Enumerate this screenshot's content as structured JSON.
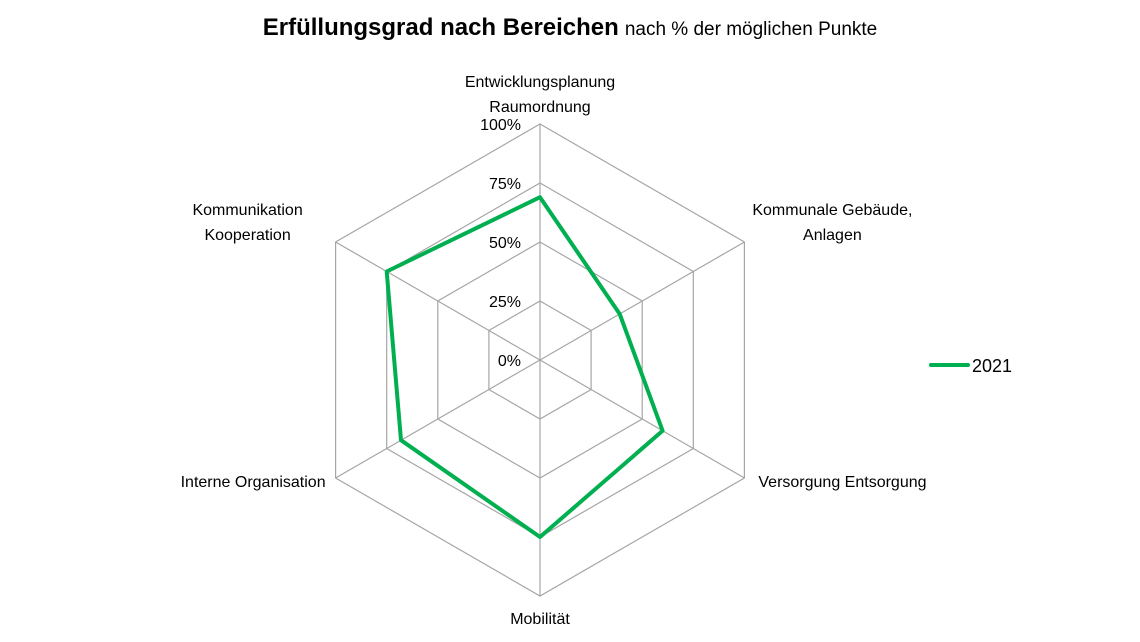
{
  "chart_data": {
    "type": "radar",
    "title": "Erfüllungsgrad nach Bereichen",
    "subtitle": "nach % der möglichen Punkte",
    "categories": [
      [
        "Entwicklungsplanung",
        "Raumordnung"
      ],
      [
        "Kommunale Gebäude,",
        "Anlagen"
      ],
      [
        "Versorgung Entsorgung"
      ],
      [
        "Mobilität"
      ],
      [
        "Interne Organisation"
      ],
      [
        "Kommunikation",
        "Kooperation"
      ]
    ],
    "ticks": [
      "0%",
      "25%",
      "50%",
      "75%",
      "100%"
    ],
    "range": [
      0,
      100
    ],
    "series": [
      {
        "name": "2021",
        "values": [
          69,
          39,
          60,
          75,
          68,
          75
        ],
        "color": "#00b050"
      }
    ],
    "grid": true,
    "grid_color": "#a6a6a6",
    "legend_position": "right"
  }
}
